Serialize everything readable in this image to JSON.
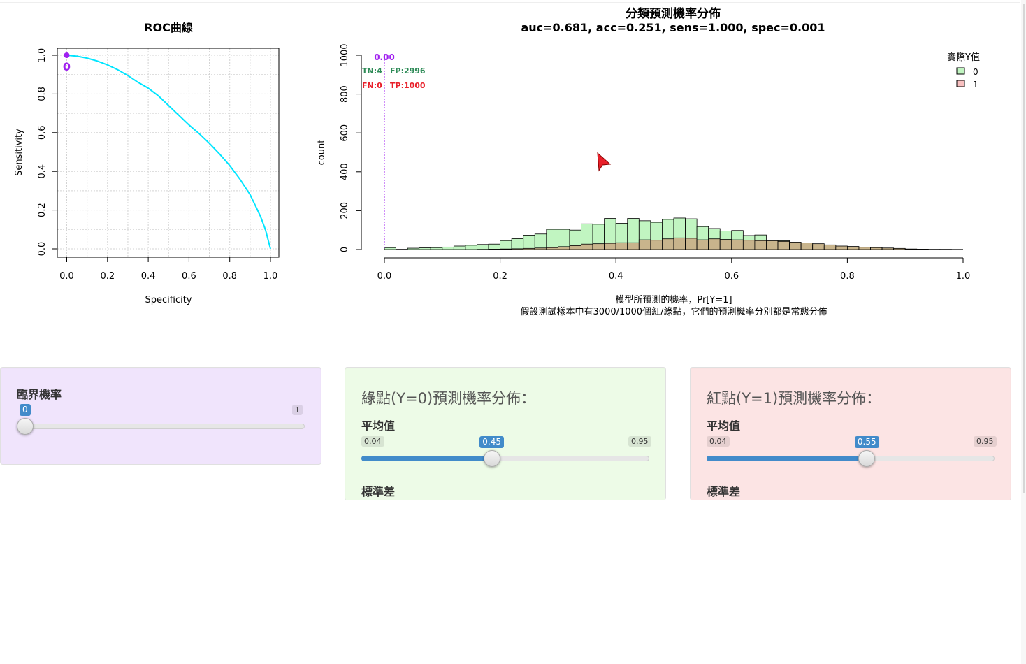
{
  "roc_chart": {
    "title": "ROC曲線",
    "xlabel": "Specificity",
    "ylabel": "Sensitivity",
    "xticks": [
      "0.0",
      "0.2",
      "0.4",
      "0.6",
      "0.8",
      "1.0"
    ],
    "yticks": [
      "0.0",
      "0.2",
      "0.4",
      "0.6",
      "0.8",
      "1.0"
    ],
    "point_label": "0",
    "curve_color": "#00e5ff",
    "point_color": "#a020f0"
  },
  "hist_chart": {
    "title": "分類預測機率分佈",
    "subtitle": "auc=0.681, acc=0.251, sens=1.000, spec=0.001",
    "ylabel": "count",
    "xticks": [
      "0.0",
      "0.2",
      "0.4",
      "0.6",
      "0.8",
      "1.0"
    ],
    "yticks": [
      "0",
      "200",
      "400",
      "600",
      "800",
      "1000"
    ],
    "xlabel_line1": "模型所預測的機率，Pr[Y=1]",
    "xlabel_line2": "假設測試樣本中有3000/1000個紅/綠點，它們的預測機率分別都是常態分佈",
    "threshold_label": "0.00",
    "tn": "TN:4",
    "fp": "FP:2996",
    "fn": "FN:0",
    "tp": "TP:1000",
    "legend_title": "實際Y值",
    "legend_items": [
      "0",
      "1"
    ],
    "colors": {
      "green": "#c1f5c1",
      "tan": "#c8b48c",
      "threshold": "#a020f0",
      "tn_fp": "#2e8b57",
      "fn_tp": "#e8202a"
    }
  },
  "chart_data": [
    {
      "type": "line",
      "title": "ROC曲線",
      "xlabel": "Specificity",
      "ylabel": "Sensitivity",
      "xlim": [
        0,
        1
      ],
      "ylim": [
        0,
        1
      ],
      "x": [
        0.0,
        0.05,
        0.1,
        0.15,
        0.2,
        0.25,
        0.3,
        0.35,
        0.4,
        0.45,
        0.5,
        0.55,
        0.6,
        0.65,
        0.7,
        0.75,
        0.8,
        0.85,
        0.9,
        0.95,
        0.975,
        1.0
      ],
      "y": [
        1.0,
        0.995,
        0.985,
        0.97,
        0.95,
        0.925,
        0.895,
        0.86,
        0.83,
        0.79,
        0.74,
        0.69,
        0.64,
        0.595,
        0.545,
        0.49,
        0.43,
        0.36,
        0.28,
        0.17,
        0.1,
        0.0
      ],
      "point": {
        "x": 0.0,
        "y": 1.0,
        "label": "0"
      }
    },
    {
      "type": "bar",
      "title": "分類預測機率分佈",
      "subtitle": "auc=0.681, acc=0.251, sens=1.000, spec=0.001",
      "ylabel": "count",
      "xlim": [
        0,
        1
      ],
      "ylim": [
        0,
        1000
      ],
      "bin_width": 0.02,
      "x": [
        0.01,
        0.03,
        0.05,
        0.07,
        0.09,
        0.11,
        0.13,
        0.15,
        0.17,
        0.19,
        0.21,
        0.23,
        0.25,
        0.27,
        0.29,
        0.31,
        0.33,
        0.35,
        0.37,
        0.39,
        0.41,
        0.43,
        0.45,
        0.47,
        0.49,
        0.51,
        0.53,
        0.55,
        0.57,
        0.59,
        0.61,
        0.63,
        0.65,
        0.67,
        0.69,
        0.71,
        0.73,
        0.75,
        0.77,
        0.79,
        0.81,
        0.83,
        0.85,
        0.87,
        0.89,
        0.91,
        0.93,
        0.95,
        0.97,
        0.99
      ],
      "series": [
        {
          "name": "0",
          "values": [
            10,
            1,
            7,
            9,
            10,
            13,
            18,
            22,
            26,
            28,
            46,
            56,
            74,
            80,
            104,
            104,
            100,
            132,
            130,
            160,
            135,
            160,
            148,
            140,
            155,
            162,
            158,
            118,
            108,
            95,
            98,
            72,
            75,
            40,
            45,
            30,
            28,
            20,
            15,
            12,
            10,
            8,
            5,
            5,
            2,
            0,
            0,
            0,
            0,
            0
          ]
        },
        {
          "name": "1",
          "values": [
            0,
            0,
            0,
            0,
            0,
            0,
            0,
            0,
            1,
            2,
            3,
            4,
            6,
            8,
            10,
            15,
            20,
            28,
            30,
            32,
            35,
            35,
            50,
            48,
            55,
            60,
            58,
            50,
            55,
            52,
            50,
            48,
            46,
            45,
            42,
            38,
            34,
            30,
            24,
            18,
            16,
            12,
            10,
            8,
            6,
            3,
            2,
            1,
            1,
            0
          ]
        }
      ],
      "threshold": 0.0,
      "legend": {
        "title": "實際Y值",
        "position": "top-right"
      }
    }
  ],
  "threshold_panel": {
    "label": "臨界機率",
    "min": "0",
    "max": "1",
    "value": "0",
    "fraction": 0.0
  },
  "green_panel": {
    "heading": "綠點(Y=0)預測機率分佈：",
    "mean_label": "平均值",
    "min": "0.04",
    "max": "0.95",
    "value": "0.45",
    "fraction": 0.4505,
    "sd_label": "標準差"
  },
  "red_panel": {
    "heading": "紅點(Y=1)預測機率分佈：",
    "mean_label": "平均值",
    "min": "0.04",
    "max": "0.95",
    "value": "0.55",
    "fraction": 0.5604,
    "sd_label": "標準差"
  }
}
